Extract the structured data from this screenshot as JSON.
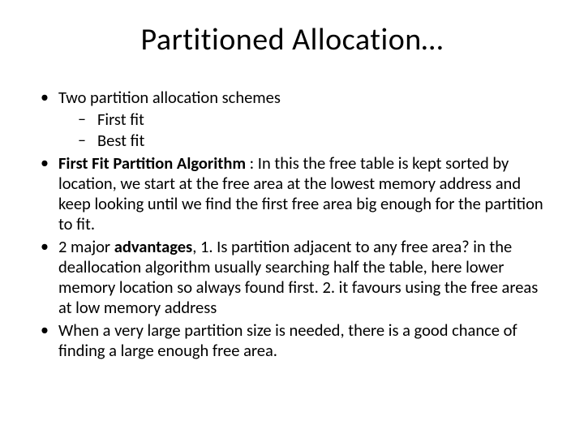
{
  "slide": {
    "title": "Partitioned Allocation…",
    "bullets": {
      "b1": "Two partition allocation schemes",
      "b1_sub1": "First fit",
      "b1_sub2": "Best fit",
      "b2_bold": "First Fit Partition Algorithm",
      "b2_rest": " : In this the free table is kept sorted by location, we start at the free area at the lowest memory address and keep looking until we find the first free area big enough for the partition to fit.",
      "b3_pre": "2 major ",
      "b3_bold": "advantages",
      "b3_rest": ", 1. Is partition adjacent to any free area? in the deallocation algorithm usually searching half the table, here lower memory location so always found first. 2. it favours using the free areas at low memory address",
      "b4": " When a very large partition size is needed, there is a good chance of  finding a large enough free area."
    }
  },
  "style": {
    "background_color": "#ffffff",
    "text_color": "#000000",
    "font_family": "Calibri",
    "title_fontsize": 38,
    "body_fontsize": 20.5,
    "line_height": 1.22
  }
}
